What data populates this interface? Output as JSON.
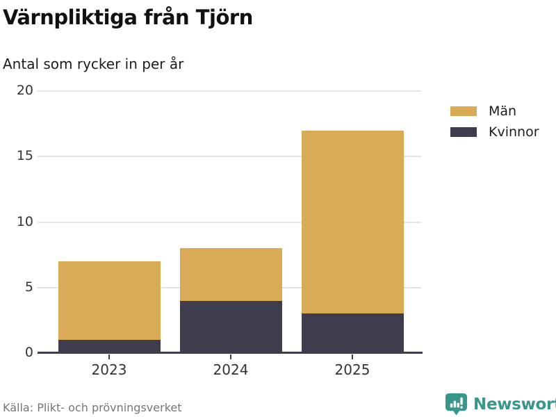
{
  "header": {
    "title": "Värnpliktiga från Tjörn",
    "subtitle": "Antal som rycker in per år"
  },
  "chart_data": {
    "type": "bar",
    "stacked": true,
    "title": "Värnpliktiga från Tjörn",
    "subtitle": "Antal som rycker in per år",
    "categories": [
      "2023",
      "2024",
      "2025"
    ],
    "series": [
      {
        "name": "Män",
        "color": "#d9ab56",
        "values": [
          6,
          4,
          14
        ]
      },
      {
        "name": "Kvinnor",
        "color": "#3f3d4d",
        "values": [
          1,
          4,
          3
        ]
      }
    ],
    "stack_totals": [
      7,
      8,
      17
    ],
    "xlabel": "",
    "ylabel": "",
    "ylim": [
      0,
      20
    ],
    "yticks": [
      0,
      5,
      10,
      15,
      20
    ],
    "grid": true,
    "legend_position": "top-right"
  },
  "footer": {
    "source": "Källa: Plikt- och prövningsverket",
    "brand": "Newsworthy"
  },
  "colors": {
    "men": "#d9ab56",
    "women": "#3f3d4d",
    "axis": "#3f3d4d",
    "grid": "#e4e4e4",
    "brand_teal": "#38968a",
    "source_text": "#767676"
  }
}
